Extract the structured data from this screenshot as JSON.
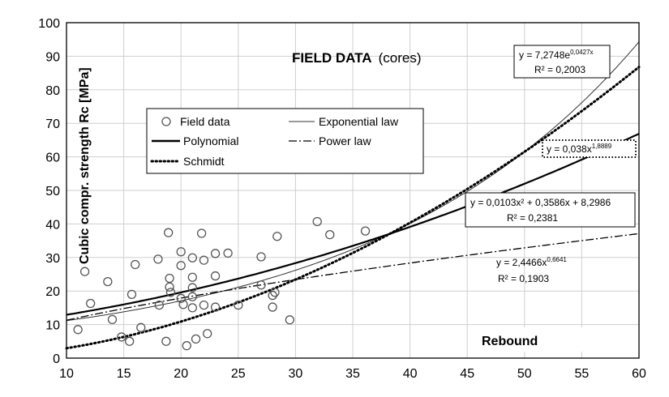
{
  "chart_data": {
    "type": "scatter",
    "title": "FIELD DATA",
    "title_suffix": "(cores)",
    "xlabel": "Rebound",
    "ylabel": "Cubic compr. strength Rc [MPa]",
    "xlim": [
      10,
      60
    ],
    "ylim": [
      0,
      100
    ],
    "xticks": [
      10,
      15,
      20,
      25,
      30,
      35,
      40,
      45,
      50,
      55,
      60
    ],
    "yticks": [
      0,
      10,
      20,
      30,
      40,
      50,
      60,
      70,
      80,
      90,
      100
    ],
    "grid": true,
    "legend_position": "upper-left-inside",
    "legend": [
      {
        "label": "Field data",
        "style": "circle"
      },
      {
        "label": "Exponential law",
        "style": "thin"
      },
      {
        "label": "Polynomial",
        "style": "solid"
      },
      {
        "label": "Power law",
        "style": "dashdot"
      },
      {
        "label": "Schmidt",
        "style": "dotted"
      }
    ],
    "points": [
      {
        "x": 11.0,
        "y": 8.5
      },
      {
        "x": 11.6,
        "y": 25.8
      },
      {
        "x": 12.1,
        "y": 16.3
      },
      {
        "x": 13.6,
        "y": 22.8
      },
      {
        "x": 14.0,
        "y": 11.5
      },
      {
        "x": 14.8,
        "y": 6.3
      },
      {
        "x": 15.5,
        "y": 5.0
      },
      {
        "x": 15.7,
        "y": 19.0
      },
      {
        "x": 16.0,
        "y": 27.9
      },
      {
        "x": 16.5,
        "y": 9.1
      },
      {
        "x": 18.0,
        "y": 29.5
      },
      {
        "x": 18.1,
        "y": 15.8
      },
      {
        "x": 18.7,
        "y": 5.0
      },
      {
        "x": 18.9,
        "y": 37.4
      },
      {
        "x": 19.0,
        "y": 23.8
      },
      {
        "x": 19.0,
        "y": 21.2
      },
      {
        "x": 19.1,
        "y": 19.6
      },
      {
        "x": 20.0,
        "y": 31.7
      },
      {
        "x": 20.0,
        "y": 27.6
      },
      {
        "x": 20.0,
        "y": 17.8
      },
      {
        "x": 20.2,
        "y": 16.0
      },
      {
        "x": 20.5,
        "y": 3.7
      },
      {
        "x": 21.0,
        "y": 29.9
      },
      {
        "x": 21.0,
        "y": 24.1
      },
      {
        "x": 21.0,
        "y": 21.0
      },
      {
        "x": 21.0,
        "y": 18.3
      },
      {
        "x": 21.0,
        "y": 15.0
      },
      {
        "x": 21.3,
        "y": 5.7
      },
      {
        "x": 21.8,
        "y": 37.2
      },
      {
        "x": 22.0,
        "y": 29.2
      },
      {
        "x": 22.0,
        "y": 15.8
      },
      {
        "x": 22.3,
        "y": 7.3
      },
      {
        "x": 23.0,
        "y": 31.2
      },
      {
        "x": 23.0,
        "y": 24.5
      },
      {
        "x": 23.0,
        "y": 15.2
      },
      {
        "x": 24.1,
        "y": 31.3
      },
      {
        "x": 25.0,
        "y": 15.8
      },
      {
        "x": 27.0,
        "y": 30.2
      },
      {
        "x": 27.0,
        "y": 21.8
      },
      {
        "x": 28.0,
        "y": 18.7
      },
      {
        "x": 28.0,
        "y": 15.2
      },
      {
        "x": 28.2,
        "y": 19.6
      },
      {
        "x": 28.4,
        "y": 36.3
      },
      {
        "x": 29.5,
        "y": 11.4
      },
      {
        "x": 31.9,
        "y": 40.7
      },
      {
        "x": 33.0,
        "y": 36.8
      },
      {
        "x": 36.1,
        "y": 37.9
      }
    ],
    "fits": [
      {
        "name": "Exponential law",
        "equation": "y = 7,2748e",
        "equation_sup": "0,0427x",
        "r2": "R² = 0,2003",
        "style": "thin"
      },
      {
        "name": "Polynomial",
        "equation": "y = 0,0103x² + 0,3586x + 8,2986",
        "equation_sup": "",
        "r2": "R² = 0,2381",
        "style": "solid"
      },
      {
        "name": "Power law",
        "equation": "y = 2,4466x",
        "equation_sup": "0,6641",
        "r2": "R² = 0,1903",
        "style": "dashdot"
      },
      {
        "name": "Schmidt",
        "equation": "y = 0,038x",
        "equation_sup": "1,8889",
        "r2": "",
        "style": "dotted"
      }
    ]
  }
}
